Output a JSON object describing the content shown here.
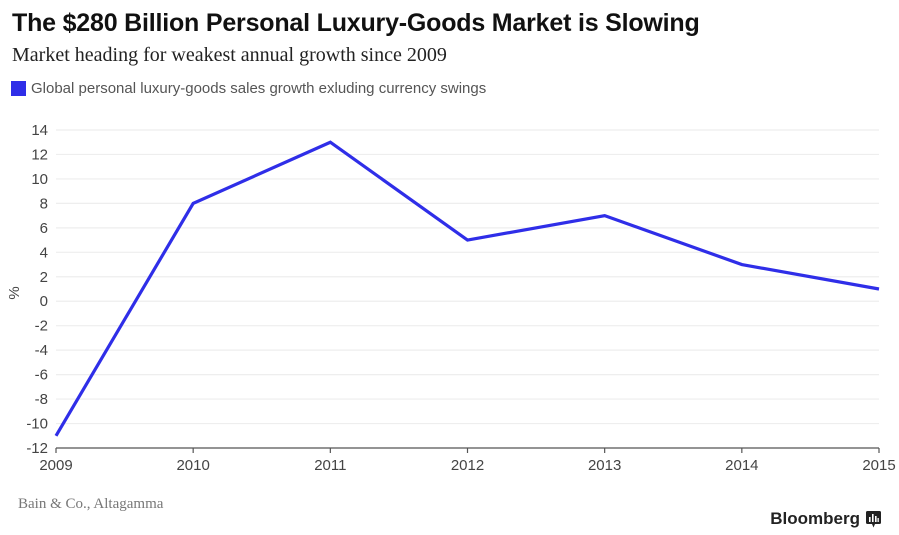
{
  "header": {
    "title": "The $280 Billion Personal Luxury-Goods Market is Slowing",
    "subtitle": "Market heading for weakest annual growth since 2009"
  },
  "legend": {
    "label": "Global personal luxury-goods sales growth exluding currency swings",
    "color": "#2f2ee8"
  },
  "footer": {
    "source": "Bain & Co., Altagamma",
    "brand": "Bloomberg",
    "brand_icon": "bloomberg-chart-icon"
  },
  "chart_data": {
    "type": "line",
    "title": "The $280 Billion Personal Luxury-Goods Market is Slowing",
    "subtitle": "Market heading for weakest annual growth since 2009",
    "xlabel": "",
    "ylabel": "%",
    "x": [
      "2009",
      "2010",
      "2011",
      "2012",
      "2013",
      "2014",
      "2015"
    ],
    "series": [
      {
        "name": "Global personal luxury-goods sales growth exluding currency swings",
        "color": "#2f2ee8",
        "values": [
          -11,
          8,
          13,
          5,
          7,
          3,
          1
        ]
      }
    ],
    "ylim": [
      -12,
      14
    ],
    "yticks": [
      14,
      12,
      10,
      8,
      6,
      4,
      2,
      0,
      -2,
      -4,
      -6,
      -8,
      -10,
      -12
    ],
    "xticks": [
      "2009",
      "2010",
      "2011",
      "2012",
      "2013",
      "2014",
      "2015"
    ],
    "grid": true,
    "legend_position": "top-left",
    "source": "Bain & Co., Altagamma"
  }
}
